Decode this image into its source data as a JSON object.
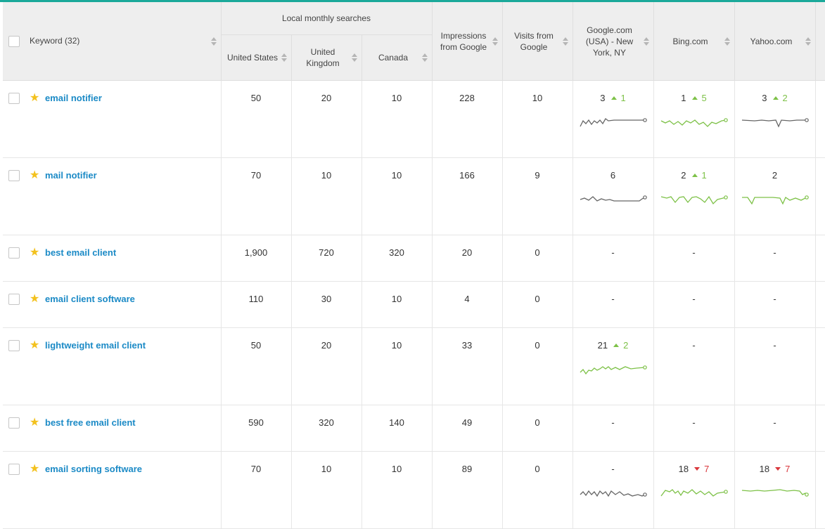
{
  "colors": {
    "accent_top": "#1aa99a",
    "link": "#1b8ac6",
    "up": "#7dc147",
    "down": "#d9363b",
    "spark_gray": "#666666",
    "spark_green": "#7dc147",
    "star": "#f3c11d"
  },
  "header": {
    "keyword": "Keyword (32)",
    "local_group": "Local monthly searches",
    "us": "United States",
    "uk": "United Kingdom",
    "ca": "Canada",
    "impressions": "Impressions from Google",
    "visits": "Visits from Google",
    "google": "Google.com (USA) - New York, NY",
    "bing": "Bing.com",
    "yahoo": "Yahoo.com"
  },
  "rows": [
    {
      "keyword": "email notifier",
      "us": "50",
      "uk": "20",
      "ca": "10",
      "impressions": "228",
      "visits": "10",
      "google": {
        "rank": "3",
        "dir": "up",
        "change": "1"
      },
      "bing": {
        "rank": "1",
        "dir": "up",
        "change": "5"
      },
      "yahoo": {
        "rank": "3",
        "dir": "up",
        "change": "2"
      }
    },
    {
      "keyword": "mail notifier",
      "us": "70",
      "uk": "10",
      "ca": "10",
      "impressions": "166",
      "visits": "9",
      "google": {
        "rank": "6",
        "dir": "",
        "change": ""
      },
      "bing": {
        "rank": "2",
        "dir": "up",
        "change": "1"
      },
      "yahoo": {
        "rank": "2",
        "dir": "",
        "change": ""
      }
    },
    {
      "keyword": "best email client",
      "us": "1,900",
      "uk": "720",
      "ca": "320",
      "impressions": "20",
      "visits": "0",
      "google": {
        "rank": "-",
        "dir": "",
        "change": ""
      },
      "bing": {
        "rank": "-",
        "dir": "",
        "change": ""
      },
      "yahoo": {
        "rank": "-",
        "dir": "",
        "change": ""
      }
    },
    {
      "keyword": "email client software",
      "us": "110",
      "uk": "30",
      "ca": "10",
      "impressions": "4",
      "visits": "0",
      "google": {
        "rank": "-",
        "dir": "",
        "change": ""
      },
      "bing": {
        "rank": "-",
        "dir": "",
        "change": ""
      },
      "yahoo": {
        "rank": "-",
        "dir": "",
        "change": ""
      }
    },
    {
      "keyword": "lightweight email client",
      "us": "50",
      "uk": "20",
      "ca": "10",
      "impressions": "33",
      "visits": "0",
      "google": {
        "rank": "21",
        "dir": "up",
        "change": "2"
      },
      "bing": {
        "rank": "-",
        "dir": "",
        "change": ""
      },
      "yahoo": {
        "rank": "-",
        "dir": "",
        "change": ""
      }
    },
    {
      "keyword": "best free email client",
      "us": "590",
      "uk": "320",
      "ca": "140",
      "impressions": "49",
      "visits": "0",
      "google": {
        "rank": "-",
        "dir": "",
        "change": ""
      },
      "bing": {
        "rank": "-",
        "dir": "",
        "change": ""
      },
      "yahoo": {
        "rank": "-",
        "dir": "",
        "change": ""
      }
    },
    {
      "keyword": "email sorting software",
      "us": "70",
      "uk": "10",
      "ca": "10",
      "impressions": "89",
      "visits": "0",
      "google": {
        "rank": "-",
        "dir": "",
        "change": ""
      },
      "bing": {
        "rank": "18",
        "dir": "down",
        "change": "7"
      },
      "yahoo": {
        "rank": "18",
        "dir": "down",
        "change": "7"
      }
    }
  ]
}
